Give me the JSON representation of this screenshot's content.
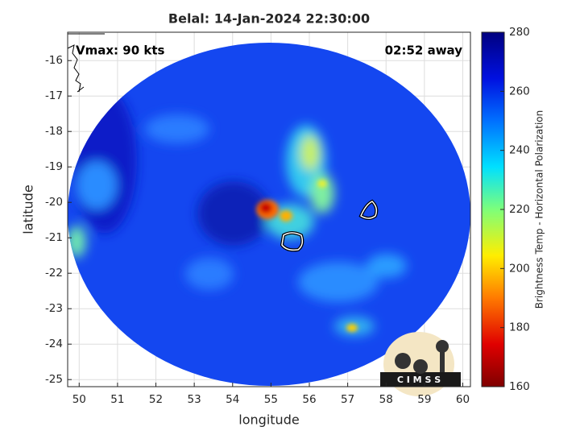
{
  "chart_data": {
    "type": "image",
    "title": "Belal: 14-Jan-2024 22:30:00",
    "x_label": "longitude",
    "y_label": "latitude",
    "annotations": [
      "Vmax: 90 kts",
      "02:52 away"
    ],
    "logo": "C I M S S",
    "xlim": [
      49.7,
      60.2
    ],
    "xticks": [
      50,
      51,
      52,
      53,
      54,
      55,
      56,
      57,
      58,
      59,
      60
    ],
    "ylim": [
      -25.2,
      -15.2
    ],
    "yticks": [
      -25,
      -24,
      -23,
      -22,
      -21,
      -20,
      -19,
      -18,
      -17,
      -16
    ],
    "grid": true,
    "colorbar": {
      "label": "Brightness Temp - Horizontal Polarization",
      "lim": [
        160,
        280
      ],
      "ticks": [
        160,
        180,
        200,
        220,
        240,
        260,
        280
      ]
    }
  }
}
